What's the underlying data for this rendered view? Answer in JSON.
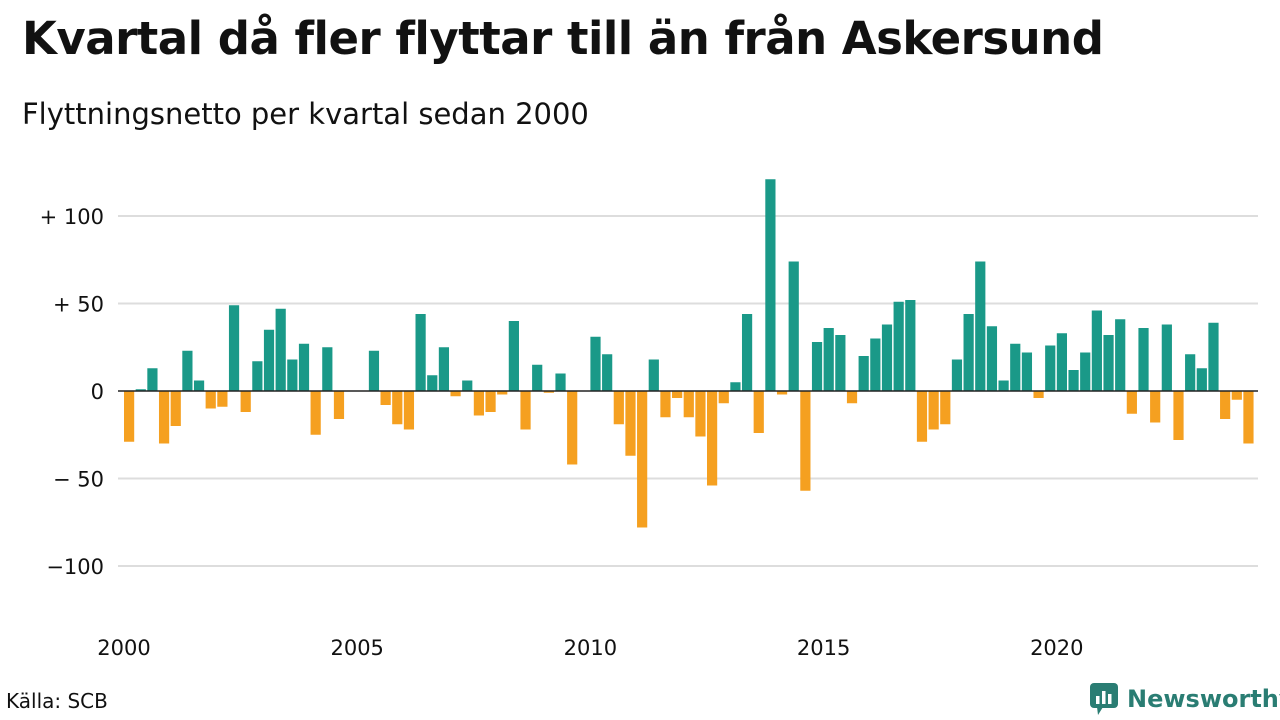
{
  "title": "Kvartal då fler flyttar till än från Askersund",
  "subtitle": "Flyttningsnetto per kvartal sedan 2000",
  "source": "Källa: SCB",
  "brand": {
    "name": "Newsworthy",
    "icon": "chart-bubble-icon"
  },
  "colors": {
    "positive": "#1a9988",
    "negative": "#f5a020",
    "grid": "#dddddd",
    "axis": "#222222",
    "brand": "#2a7d73"
  },
  "chart_data": {
    "type": "bar",
    "x_start_year": 2000,
    "values": [
      -29,
      1,
      13,
      -30,
      -20,
      23,
      6,
      -10,
      -9,
      49,
      -12,
      17,
      35,
      47,
      18,
      27,
      -25,
      25,
      -16,
      0,
      0,
      23,
      -8,
      -19,
      -22,
      44,
      9,
      25,
      -3,
      6,
      -14,
      -12,
      -2,
      40,
      -22,
      15,
      -1,
      10,
      -42,
      0,
      31,
      21,
      -19,
      -37,
      -78,
      18,
      -15,
      -4,
      -15,
      -26,
      -54,
      -7,
      5,
      44,
      -24,
      121,
      -2,
      74,
      -57,
      28,
      36,
      32,
      -7,
      20,
      30,
      38,
      51,
      52,
      -29,
      -22,
      -19,
      18,
      44,
      74,
      37,
      6,
      27,
      22,
      -4,
      26,
      33,
      12,
      22,
      46,
      32,
      41,
      -13,
      36,
      -18,
      38,
      -28,
      21,
      13,
      39,
      -16,
      -5,
      -30
    ],
    "ylim": [
      -125,
      125
    ],
    "y_ticks": [
      100,
      50,
      0,
      -50,
      -100
    ],
    "y_tick_labels": [
      "+ 100",
      "+  50",
      "0",
      "− 50",
      "−100"
    ],
    "x_ticks": [
      "2000",
      "2005",
      "2010",
      "2015",
      "2020"
    ],
    "grid": true,
    "legend": "none"
  }
}
